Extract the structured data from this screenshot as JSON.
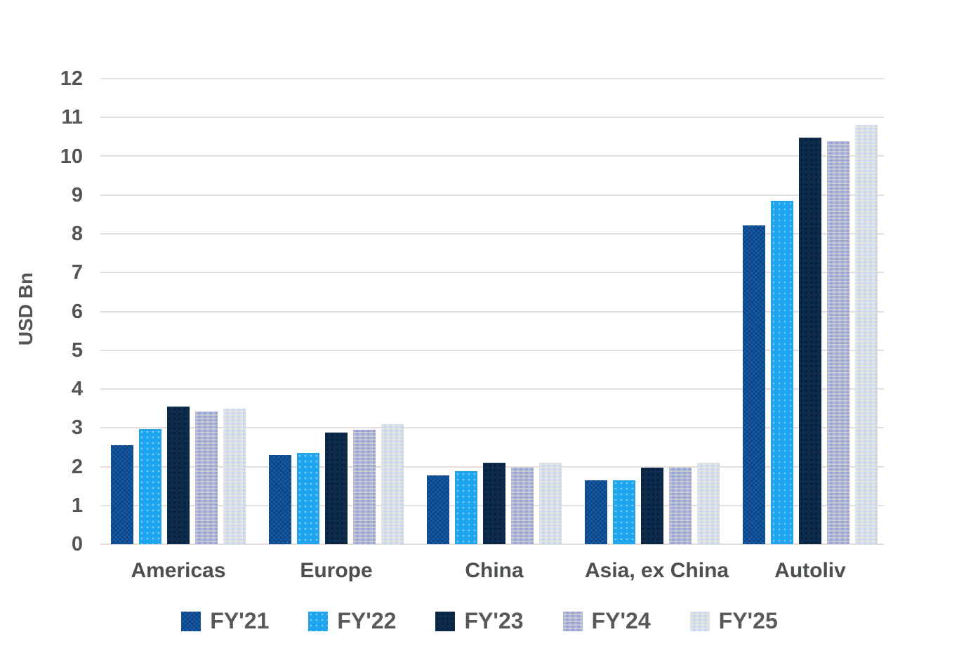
{
  "chart_data": {
    "type": "bar",
    "title": "",
    "xlabel": "",
    "ylabel": "USD Bn",
    "ylim": [
      0,
      12
    ],
    "ytick_step": 1,
    "ytick_labels": [
      "0",
      "1",
      "2",
      "3",
      "4",
      "5",
      "6",
      "7",
      "8",
      "9",
      "10",
      "11",
      "12"
    ],
    "grid": true,
    "legend_position": "bottom",
    "categories": [
      "Americas",
      "Europe",
      "China",
      "Asia, ex China",
      "Autoliv"
    ],
    "series": [
      {
        "name": "FY'21",
        "color": "#155CA8",
        "values": [
          2.55,
          2.3,
          1.78,
          1.65,
          8.22
        ]
      },
      {
        "name": "FY'22",
        "color": "#1FA6EE",
        "values": [
          2.97,
          2.36,
          1.88,
          1.65,
          8.85
        ]
      },
      {
        "name": "FY'23",
        "color": "#0D2B4C",
        "values": [
          3.55,
          2.88,
          2.1,
          1.97,
          10.48
        ]
      },
      {
        "name": "FY'24",
        "color": "#9AA2D8",
        "values": [
          3.43,
          2.95,
          2.0,
          2.0,
          10.39
        ]
      },
      {
        "name": "FY'25",
        "color": "#C9D5EC",
        "values": [
          3.5,
          3.1,
          2.1,
          2.1,
          10.8
        ]
      }
    ],
    "gridline_color": "#E6DEDD",
    "axis_text_color": "#515557"
  }
}
